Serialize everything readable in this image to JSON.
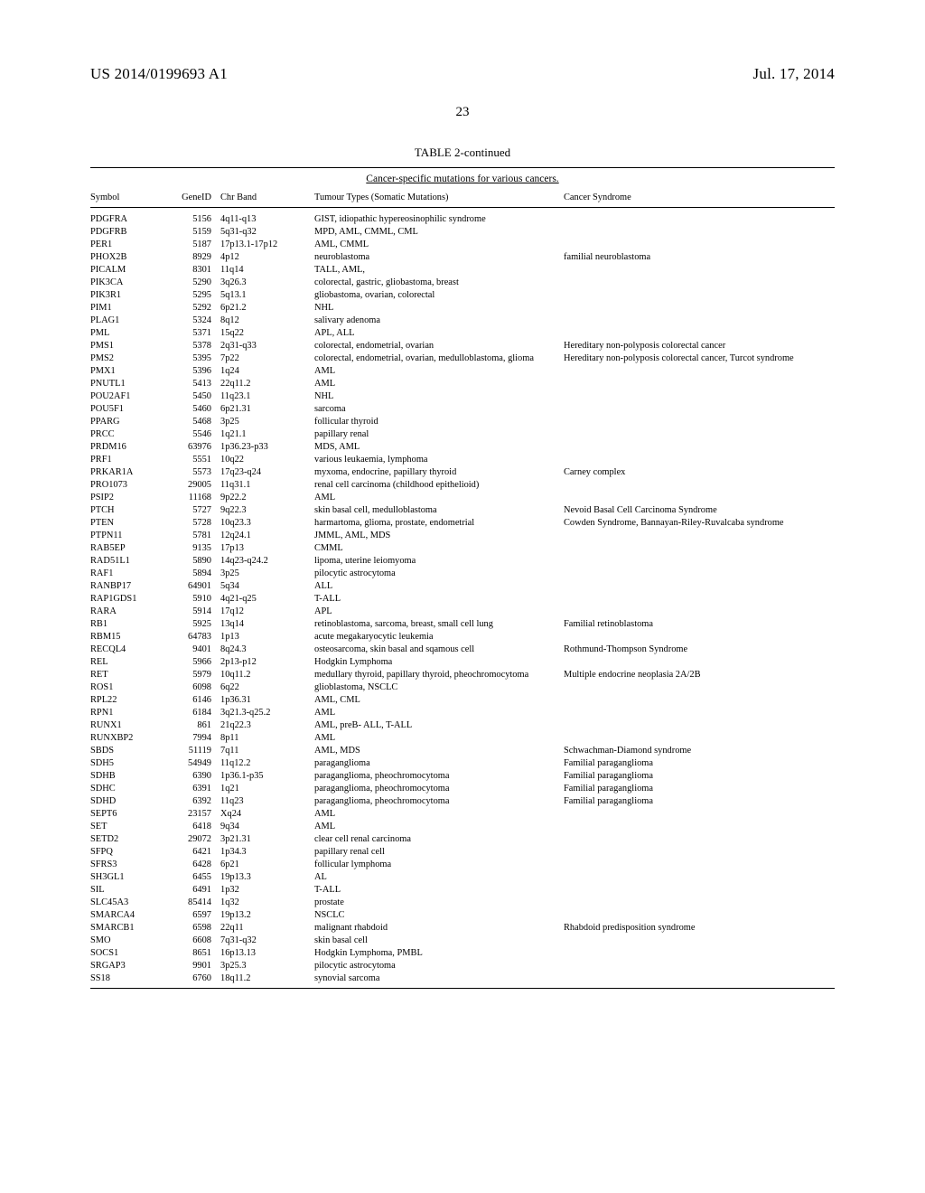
{
  "header": {
    "left": "US 2014/0199693 A1",
    "right": "Jul. 17, 2014"
  },
  "pagenum": "23",
  "table": {
    "title": "TABLE 2-continued",
    "caption": "Cancer-specific mutations for various cancers.",
    "columns": [
      "Symbol",
      "GeneID",
      "Chr Band",
      "Tumour Types (Somatic Mutations)",
      "Cancer Syndrome"
    ],
    "rows": [
      [
        "PDGFRA",
        "5156",
        "4q11-q13",
        "GIST, idiopathic hypereosinophilic syndrome",
        ""
      ],
      [
        "PDGFRB",
        "5159",
        "5q31-q32",
        "MPD, AML, CMML, CML",
        ""
      ],
      [
        "PER1",
        "5187",
        "17p13.1-17p12",
        "AML, CMML",
        ""
      ],
      [
        "PHOX2B",
        "8929",
        "4p12",
        "neuroblastoma",
        "familial neuroblastoma"
      ],
      [
        "PICALM",
        "8301",
        "11q14",
        "TALL, AML,",
        ""
      ],
      [
        "PIK3CA",
        "5290",
        "3q26.3",
        "colorectal, gastric, gliobastoma, breast",
        ""
      ],
      [
        "PIK3R1",
        "5295",
        "5q13.1",
        "gliobastoma, ovarian, colorectal",
        ""
      ],
      [
        "PIM1",
        "5292",
        "6p21.2",
        "NHL",
        ""
      ],
      [
        "PLAG1",
        "5324",
        "8q12",
        "salivary adenoma",
        ""
      ],
      [
        "PML",
        "5371",
        "15q22",
        "APL, ALL",
        ""
      ],
      [
        "PMS1",
        "5378",
        "2q31-q33",
        "colorectal, endometrial, ovarian",
        "Hereditary non-polyposis colorectal cancer"
      ],
      [
        "PMS2",
        "5395",
        "7p22",
        "colorectal, endometrial, ovarian, medulloblastoma, glioma",
        "Hereditary non-polyposis colorectal cancer, Turcot syndrome"
      ],
      [
        "PMX1",
        "5396",
        "1q24",
        "AML",
        ""
      ],
      [
        "PNUTL1",
        "5413",
        "22q11.2",
        "AML",
        ""
      ],
      [
        "POU2AF1",
        "5450",
        "11q23.1",
        "NHL",
        ""
      ],
      [
        "POU5F1",
        "5460",
        "6p21.31",
        "sarcoma",
        ""
      ],
      [
        "PPARG",
        "5468",
        "3p25",
        "follicular thyroid",
        ""
      ],
      [
        "PRCC",
        "5546",
        "1q21.1",
        "papillary renal",
        ""
      ],
      [
        "PRDM16",
        "63976",
        "1p36.23-p33",
        "MDS, AML",
        ""
      ],
      [
        "PRF1",
        "5551",
        "10q22",
        "various leukaemia, lymphoma",
        ""
      ],
      [
        "PRKAR1A",
        "5573",
        "17q23-q24",
        "myxoma, endocrine, papillary thyroid",
        "Carney complex"
      ],
      [
        "PRO1073",
        "29005",
        "11q31.1",
        "renal cell carcinoma (childhood epithelioid)",
        ""
      ],
      [
        "PSIP2",
        "11168",
        "9p22.2",
        "AML",
        ""
      ],
      [
        "PTCH",
        "5727",
        "9q22.3",
        "skin basal cell, medulloblastoma",
        "Nevoid Basal Cell Carcinoma Syndrome"
      ],
      [
        "PTEN",
        "5728",
        "10q23.3",
        "harmartoma, glioma, prostate, endometrial",
        "Cowden Syndrome, Bannayan-Riley-Ruvalcaba syndrome"
      ],
      [
        "PTPN11",
        "5781",
        "12q24.1",
        "JMML, AML, MDS",
        ""
      ],
      [
        "RAB5EP",
        "9135",
        "17p13",
        "CMML",
        ""
      ],
      [
        "RAD51L1",
        "5890",
        "14q23-q24.2",
        "lipoma, uterine leiomyoma",
        ""
      ],
      [
        "RAF1",
        "5894",
        "3p25",
        "pilocytic astrocytoma",
        ""
      ],
      [
        "RANBP17",
        "64901",
        "5q34",
        "ALL",
        ""
      ],
      [
        "RAP1GDS1",
        "5910",
        "4q21-q25",
        "T-ALL",
        ""
      ],
      [
        "RARA",
        "5914",
        "17q12",
        "APL",
        ""
      ],
      [
        "RB1",
        "5925",
        "13q14",
        "retinoblastoma, sarcoma, breast, small cell lung",
        "Familial retinoblastoma"
      ],
      [
        "RBM15",
        "64783",
        "1p13",
        "acute megakaryocytic leukemia",
        ""
      ],
      [
        "RECQL4",
        "9401",
        "8q24.3",
        "osteosarcoma, skin basal and sqamous cell",
        "Rothmund-Thompson Syndrome"
      ],
      [
        "REL",
        "5966",
        "2p13-p12",
        "Hodgkin Lymphoma",
        ""
      ],
      [
        "RET",
        "5979",
        "10q11.2",
        "medullary thyroid, papillary thyroid, pheochromocytoma",
        "Multiple endocrine neoplasia 2A/2B"
      ],
      [
        "ROS1",
        "6098",
        "6q22",
        "glioblastoma, NSCLC",
        ""
      ],
      [
        "RPL22",
        "6146",
        "1p36.31",
        "AML, CML",
        ""
      ],
      [
        "RPN1",
        "6184",
        "3q21.3-q25.2",
        "AML",
        ""
      ],
      [
        "RUNX1",
        "861",
        "21q22.3",
        "AML, preB- ALL, T-ALL",
        ""
      ],
      [
        "RUNXBP2",
        "7994",
        "8p11",
        "AML",
        ""
      ],
      [
        "SBDS",
        "51119",
        "7q11",
        "AML, MDS",
        "Schwachman-Diamond syndrome"
      ],
      [
        "SDH5",
        "54949",
        "11q12.2",
        "paraganglioma",
        "Familial paraganglioma"
      ],
      [
        "SDHB",
        "6390",
        "1p36.1-p35",
        "paraganglioma, pheochromocytoma",
        "Familial paraganglioma"
      ],
      [
        "SDHC",
        "6391",
        "1q21",
        "paraganglioma, pheochromocytoma",
        "Familial paraganglioma"
      ],
      [
        "SDHD",
        "6392",
        "11q23",
        "paraganglioma, pheochromocytoma",
        "Familial paraganglioma"
      ],
      [
        "SEPT6",
        "23157",
        "Xq24",
        "AML",
        ""
      ],
      [
        "SET",
        "6418",
        "9q34",
        "AML",
        ""
      ],
      [
        "SETD2",
        "29072",
        "3p21.31",
        "clear cell renal carcinoma",
        ""
      ],
      [
        "SFPQ",
        "6421",
        "1p34.3",
        "papillary renal cell",
        ""
      ],
      [
        "SFRS3",
        "6428",
        "6p21",
        "follicular lymphoma",
        ""
      ],
      [
        "SH3GL1",
        "6455",
        "19p13.3",
        "AL",
        ""
      ],
      [
        "SIL",
        "6491",
        "1p32",
        "T-ALL",
        ""
      ],
      [
        "SLC45A3",
        "85414",
        "1q32",
        "prostate",
        ""
      ],
      [
        "SMARCA4",
        "6597",
        "19p13.2",
        "NSCLC",
        ""
      ],
      [
        "SMARCB1",
        "6598",
        "22q11",
        "malignant rhabdoid",
        "Rhabdoid predisposition syndrome"
      ],
      [
        "SMO",
        "6608",
        "7q31-q32",
        "skin basal cell",
        ""
      ],
      [
        "SOCS1",
        "8651",
        "16p13.13",
        "Hodgkin Lymphoma, PMBL",
        ""
      ],
      [
        "SRGAP3",
        "9901",
        "3p25.3",
        "pilocytic astrocytoma",
        ""
      ],
      [
        "SS18",
        "6760",
        "18q11.2",
        "synovial sarcoma",
        ""
      ]
    ]
  }
}
